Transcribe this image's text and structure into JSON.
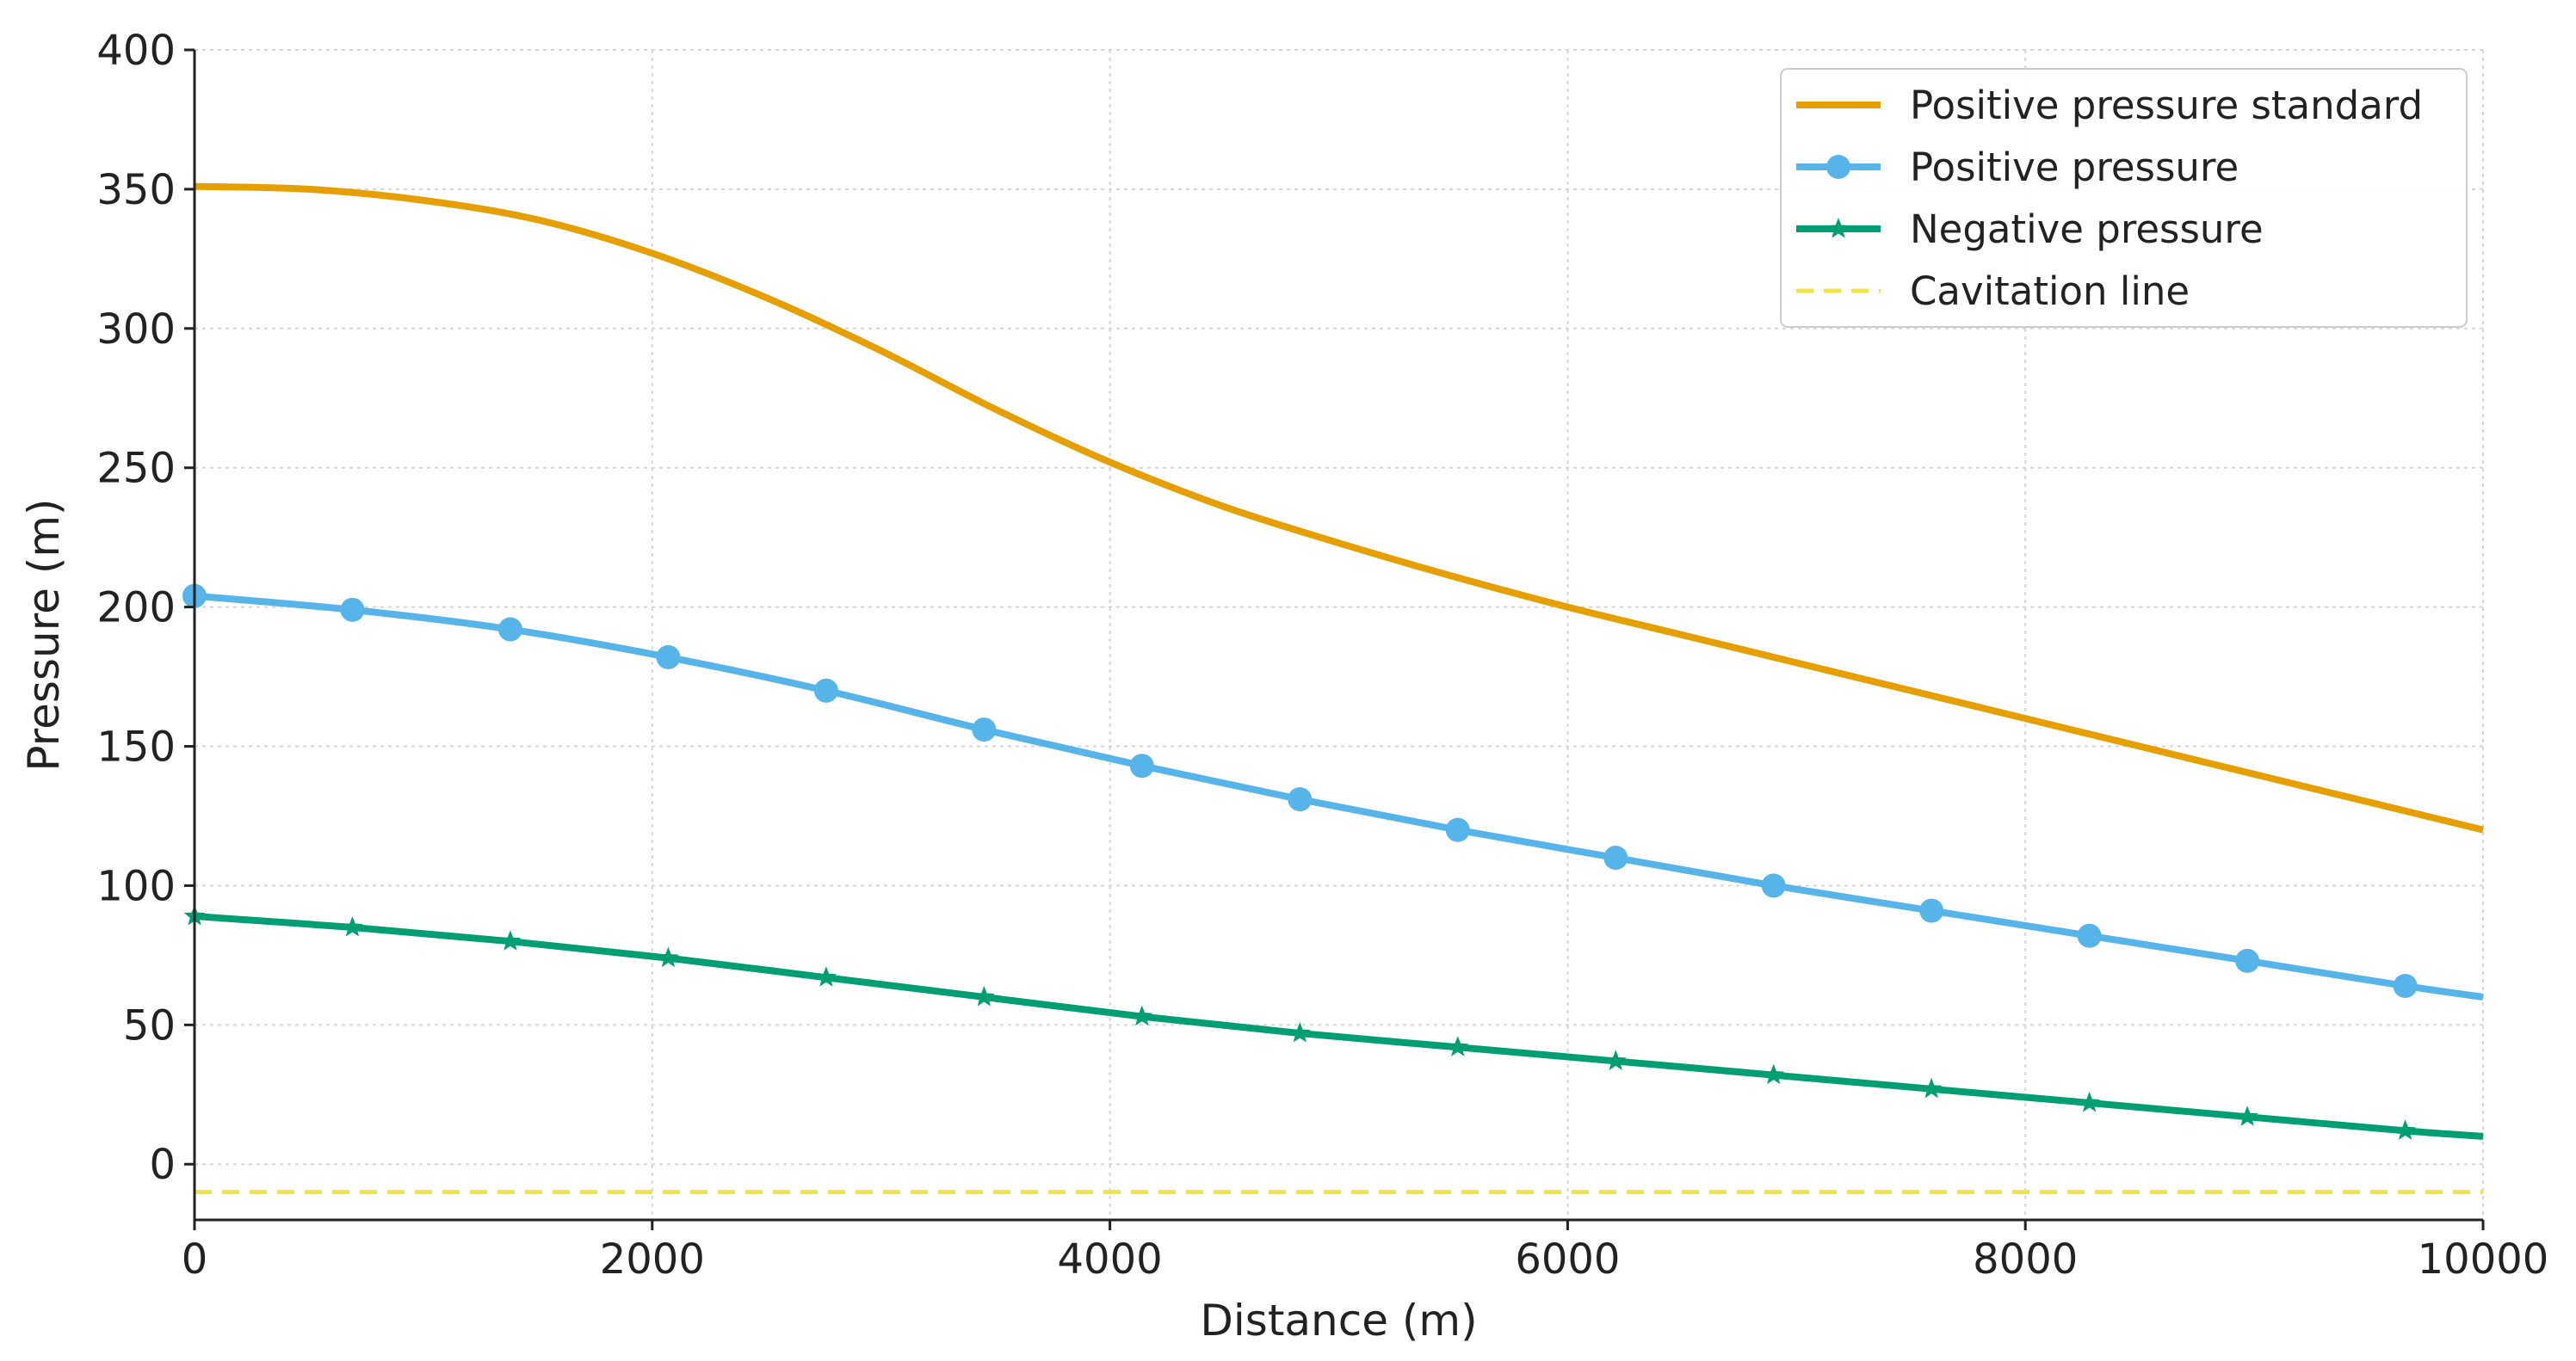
{
  "chart_data": {
    "type": "line",
    "title": "",
    "xlabel": "Distance (m)",
    "ylabel": "Pressure (m)",
    "xlim": [
      0,
      10000
    ],
    "ylim": [
      -20,
      400
    ],
    "xticks": [
      0,
      2000,
      4000,
      6000,
      8000,
      10000
    ],
    "yticks": [
      0,
      50,
      100,
      150,
      200,
      250,
      300,
      350,
      400
    ],
    "grid": true,
    "legend_position": "top-right",
    "series": [
      {
        "name": "Positive pressure standard",
        "color": "#e69f00",
        "marker": "none",
        "linestyle": "solid",
        "x": [
          0,
          500,
          1000,
          1500,
          2000,
          2500,
          3000,
          3500,
          4000,
          4500,
          5000,
          5500,
          6000,
          6500,
          7000,
          7500,
          8000,
          8500,
          9000,
          9500,
          10000
        ],
        "y": [
          351,
          350,
          346,
          339,
          327,
          311,
          292,
          271,
          252,
          236,
          223,
          211,
          200,
          190,
          180,
          170,
          160,
          150,
          140,
          130,
          120
        ]
      },
      {
        "name": "Positive pressure",
        "color": "#56b4e9",
        "marker": "circle",
        "linestyle": "solid",
        "x": [
          0,
          690,
          1380,
          2070,
          2760,
          3450,
          4140,
          4830,
          5520,
          6210,
          6900,
          7590,
          8280,
          8970,
          9660,
          10000
        ],
        "y": [
          204,
          199,
          192,
          182,
          170,
          156,
          143,
          131,
          120,
          110,
          100,
          91,
          82,
          73,
          64,
          60
        ]
      },
      {
        "name": "Negative pressure",
        "color": "#009e73",
        "marker": "star",
        "linestyle": "solid",
        "x": [
          0,
          690,
          1380,
          2070,
          2760,
          3450,
          4140,
          4830,
          5520,
          6210,
          6900,
          7590,
          8280,
          8970,
          9660,
          10000
        ],
        "y": [
          89,
          85,
          80,
          74,
          67,
          60,
          53,
          47,
          42,
          37,
          32,
          27,
          22,
          17,
          12,
          10
        ]
      },
      {
        "name": "Cavitation line",
        "color": "#f0e442",
        "marker": "none",
        "linestyle": "dashed",
        "x": [
          0,
          10000
        ],
        "y": [
          -10,
          -10
        ]
      }
    ]
  }
}
